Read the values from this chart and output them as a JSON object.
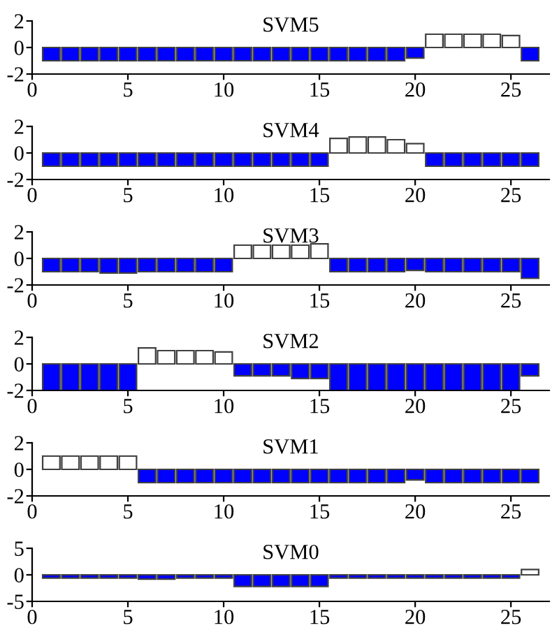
{
  "chart_data": [
    {
      "type": "bar",
      "title": "SVM5",
      "x": [
        1,
        2,
        3,
        4,
        5,
        6,
        7,
        8,
        9,
        10,
        11,
        12,
        13,
        14,
        15,
        16,
        17,
        18,
        19,
        20,
        21,
        22,
        23,
        24,
        25,
        26
      ],
      "values": [
        -1,
        -1,
        -1,
        -1,
        -1,
        -1,
        -1,
        -1,
        -1,
        -1,
        -1,
        -1,
        -1,
        -1,
        -1,
        -1,
        -1,
        -1,
        -1,
        -0.8,
        1,
        1,
        1,
        1,
        0.9,
        -1
      ],
      "colors": [
        "#0000ff",
        "#0000ff",
        "#0000ff",
        "#0000ff",
        "#0000ff",
        "#0000ff",
        "#0000ff",
        "#0000ff",
        "#0000ff",
        "#0000ff",
        "#0000ff",
        "#0000ff",
        "#0000ff",
        "#0000ff",
        "#0000ff",
        "#0000ff",
        "#0000ff",
        "#0000ff",
        "#0000ff",
        "#0000ff",
        "#ffffff",
        "#ffffff",
        "#ffffff",
        "#ffffff",
        "#ffffff",
        "#0000ff"
      ],
      "xlim": [
        0,
        27
      ],
      "xticks": [
        0,
        5,
        10,
        15,
        20,
        25
      ],
      "ylim": [
        -2,
        2
      ],
      "yticks": [
        -2,
        0,
        2
      ],
      "grid": false
    },
    {
      "type": "bar",
      "title": "SVM4",
      "x": [
        1,
        2,
        3,
        4,
        5,
        6,
        7,
        8,
        9,
        10,
        11,
        12,
        13,
        14,
        15,
        16,
        17,
        18,
        19,
        20,
        21,
        22,
        23,
        24,
        25,
        26
      ],
      "values": [
        -1,
        -1,
        -1,
        -1,
        -1,
        -1,
        -1,
        -1,
        -1,
        -1,
        -1,
        -1,
        -1,
        -1,
        -1,
        1.1,
        1.2,
        1.2,
        1,
        0.7,
        -1,
        -1,
        -1,
        -1,
        -1,
        -1
      ],
      "colors": [
        "#0000ff",
        "#0000ff",
        "#0000ff",
        "#0000ff",
        "#0000ff",
        "#0000ff",
        "#0000ff",
        "#0000ff",
        "#0000ff",
        "#0000ff",
        "#0000ff",
        "#0000ff",
        "#0000ff",
        "#0000ff",
        "#0000ff",
        "#ffffff",
        "#ffffff",
        "#ffffff",
        "#ffffff",
        "#ffffff",
        "#0000ff",
        "#0000ff",
        "#0000ff",
        "#0000ff",
        "#0000ff",
        "#0000ff"
      ],
      "xlim": [
        0,
        27
      ],
      "xticks": [
        0,
        5,
        10,
        15,
        20,
        25
      ],
      "ylim": [
        -2,
        2
      ],
      "yticks": [
        -2,
        0,
        2
      ],
      "grid": false
    },
    {
      "type": "bar",
      "title": "SVM3",
      "x": [
        1,
        2,
        3,
        4,
        5,
        6,
        7,
        8,
        9,
        10,
        11,
        12,
        13,
        14,
        15,
        16,
        17,
        18,
        19,
        20,
        21,
        22,
        23,
        24,
        25,
        26
      ],
      "values": [
        -1,
        -1,
        -1,
        -1.1,
        -1.1,
        -1,
        -1,
        -1,
        -1,
        -1,
        1,
        1,
        1,
        1,
        1.1,
        -1,
        -1,
        -1,
        -1,
        -0.9,
        -1,
        -1,
        -1,
        -1,
        -1,
        -1.5
      ],
      "colors": [
        "#0000ff",
        "#0000ff",
        "#0000ff",
        "#0000ff",
        "#0000ff",
        "#0000ff",
        "#0000ff",
        "#0000ff",
        "#0000ff",
        "#0000ff",
        "#ffffff",
        "#ffffff",
        "#ffffff",
        "#ffffff",
        "#ffffff",
        "#0000ff",
        "#0000ff",
        "#0000ff",
        "#0000ff",
        "#0000ff",
        "#0000ff",
        "#0000ff",
        "#0000ff",
        "#0000ff",
        "#0000ff",
        "#0000ff"
      ],
      "xlim": [
        0,
        27
      ],
      "xticks": [
        0,
        5,
        10,
        15,
        20,
        25
      ],
      "ylim": [
        -2,
        2
      ],
      "yticks": [
        -2,
        0,
        2
      ],
      "grid": false
    },
    {
      "type": "bar",
      "title": "SVM2",
      "x": [
        1,
        2,
        3,
        4,
        5,
        6,
        7,
        8,
        9,
        10,
        11,
        12,
        13,
        14,
        15,
        16,
        17,
        18,
        19,
        20,
        21,
        22,
        23,
        24,
        25,
        26
      ],
      "values": [
        -2,
        -2,
        -2,
        -2,
        -2,
        1.2,
        1,
        1,
        1,
        0.9,
        -0.9,
        -0.9,
        -0.9,
        -1.1,
        -1.1,
        -2,
        -2,
        -2,
        -2,
        -2,
        -2,
        -2,
        -2,
        -2,
        -2,
        -0.9
      ],
      "colors": [
        "#0000ff",
        "#0000ff",
        "#0000ff",
        "#0000ff",
        "#0000ff",
        "#ffffff",
        "#ffffff",
        "#ffffff",
        "#ffffff",
        "#ffffff",
        "#0000ff",
        "#0000ff",
        "#0000ff",
        "#0000ff",
        "#0000ff",
        "#0000ff",
        "#0000ff",
        "#0000ff",
        "#0000ff",
        "#0000ff",
        "#0000ff",
        "#0000ff",
        "#0000ff",
        "#0000ff",
        "#0000ff",
        "#0000ff"
      ],
      "xlim": [
        0,
        27
      ],
      "xticks": [
        0,
        5,
        10,
        15,
        20,
        25
      ],
      "ylim": [
        -2,
        2
      ],
      "yticks": [
        -2,
        0,
        2
      ],
      "grid": false
    },
    {
      "type": "bar",
      "title": "SVM1",
      "x": [
        1,
        2,
        3,
        4,
        5,
        6,
        7,
        8,
        9,
        10,
        11,
        12,
        13,
        14,
        15,
        16,
        17,
        18,
        19,
        20,
        21,
        22,
        23,
        24,
        25,
        26
      ],
      "values": [
        1,
        1,
        1,
        1,
        1,
        -1,
        -1,
        -1,
        -1,
        -1,
        -1,
        -1,
        -1,
        -1,
        -1,
        -1,
        -1,
        -1,
        -1,
        -0.8,
        -1,
        -1,
        -1,
        -1,
        -1,
        -1
      ],
      "colors": [
        "#ffffff",
        "#ffffff",
        "#ffffff",
        "#ffffff",
        "#ffffff",
        "#0000ff",
        "#0000ff",
        "#0000ff",
        "#0000ff",
        "#0000ff",
        "#0000ff",
        "#0000ff",
        "#0000ff",
        "#0000ff",
        "#0000ff",
        "#0000ff",
        "#0000ff",
        "#0000ff",
        "#0000ff",
        "#0000ff",
        "#0000ff",
        "#0000ff",
        "#0000ff",
        "#0000ff",
        "#0000ff",
        "#0000ff"
      ],
      "xlim": [
        0,
        27
      ],
      "xticks": [
        0,
        5,
        10,
        15,
        20,
        25
      ],
      "ylim": [
        -2,
        2
      ],
      "yticks": [
        -2,
        0,
        2
      ],
      "grid": false
    },
    {
      "type": "bar",
      "title": "SVM0",
      "x": [
        1,
        2,
        3,
        4,
        5,
        6,
        7,
        8,
        9,
        10,
        11,
        12,
        13,
        14,
        15,
        16,
        17,
        18,
        19,
        20,
        21,
        22,
        23,
        24,
        25,
        26
      ],
      "values": [
        -0.6,
        -0.6,
        -0.6,
        -0.6,
        -0.6,
        -0.8,
        -0.8,
        -0.6,
        -0.6,
        -0.6,
        -2.2,
        -2.2,
        -2.2,
        -2.2,
        -2.2,
        -0.6,
        -0.6,
        -0.6,
        -0.6,
        -0.6,
        -0.6,
        -0.6,
        -0.6,
        -0.6,
        -0.6,
        1
      ],
      "colors": [
        "#0000ff",
        "#0000ff",
        "#0000ff",
        "#0000ff",
        "#0000ff",
        "#0000ff",
        "#0000ff",
        "#0000ff",
        "#0000ff",
        "#0000ff",
        "#0000ff",
        "#0000ff",
        "#0000ff",
        "#0000ff",
        "#0000ff",
        "#0000ff",
        "#0000ff",
        "#0000ff",
        "#0000ff",
        "#0000ff",
        "#0000ff",
        "#0000ff",
        "#0000ff",
        "#0000ff",
        "#0000ff",
        "#ffffff"
      ],
      "xlim": [
        0,
        27
      ],
      "xticks": [
        0,
        5,
        10,
        15,
        20,
        25
      ],
      "ylim": [
        -5,
        5
      ],
      "yticks": [
        -5,
        0,
        5
      ],
      "grid": false
    }
  ]
}
